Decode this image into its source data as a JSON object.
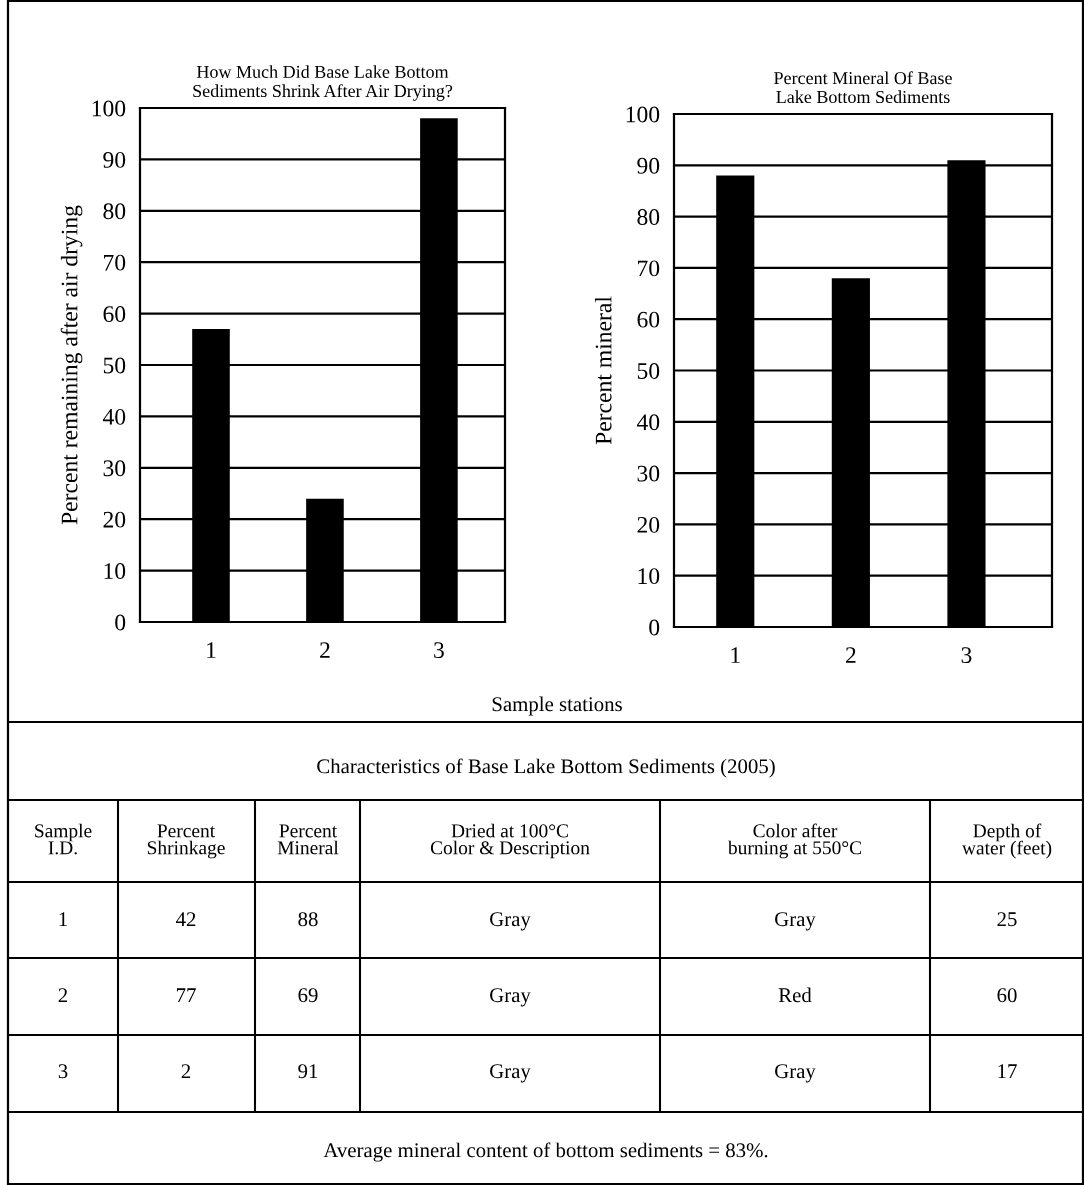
{
  "chart_data": [
    {
      "type": "bar",
      "title": "How Much Did Base Lake Bottom\nSediments Shrink After Air Drying?",
      "ylabel": "Percent remaining after air drying",
      "xlabel": "Sample stations",
      "categories": [
        "1",
        "2",
        "3"
      ],
      "values": [
        57,
        24,
        98
      ],
      "color": "#000000",
      "ylim": [
        0,
        100
      ],
      "yticks": [
        0,
        10,
        20,
        30,
        40,
        50,
        60,
        70,
        80,
        90,
        100
      ],
      "grid": "y",
      "legend": false
    },
    {
      "type": "bar",
      "title": "Percent Mineral Of Base\nLake Bottom Sediments",
      "ylabel": "Percent mineral",
      "categories": [
        "1",
        "2",
        "3"
      ],
      "values": [
        88,
        68,
        91
      ],
      "color": "#000000",
      "ylim": [
        0,
        100
      ],
      "yticks": [
        0,
        10,
        20,
        30,
        40,
        50,
        60,
        70,
        80,
        90,
        100
      ],
      "grid": "y",
      "legend": false
    },
    {
      "type": "other",
      "title": "Characteristics of Base Lake Bottom Sediments (2005)",
      "annotations": [
        "Sample\nI.D.",
        "Percent\nShrinkage",
        "Percent\nMineral",
        "Dried at 100°C\nColor & Description",
        "Color after\nburning at 550°C",
        "Depth of\nwater (feet)",
        "1",
        "42",
        "88",
        "Gray",
        "Gray",
        "25",
        "2",
        "77",
        "69",
        "Gray",
        "Red",
        "60",
        "3",
        "2",
        "91",
        "Gray",
        "Gray",
        "17",
        "Average mineral content of bottom sediments = 83%."
      ]
    }
  ]
}
